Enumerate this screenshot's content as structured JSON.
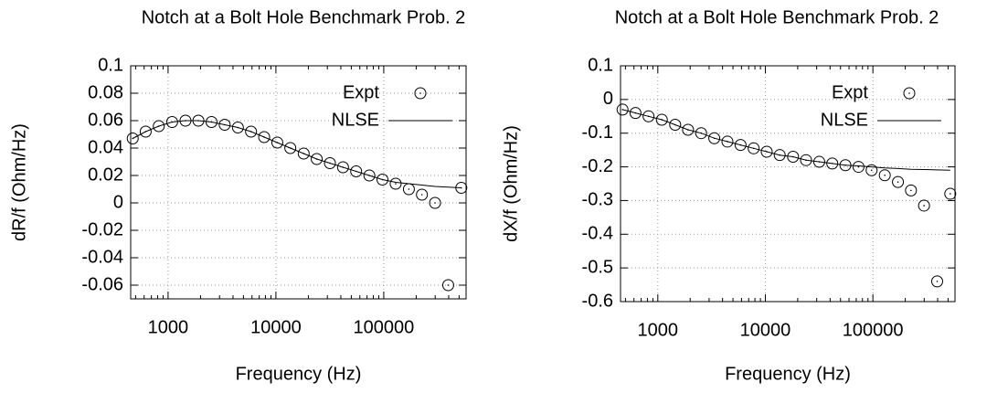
{
  "chart_data": [
    {
      "type": "line",
      "title": "Notch at a Bolt Hole Benchmark Prob. 2",
      "x_label": "Frequency (Hz)",
      "y_label": "dR/f (Ohm/Hz)",
      "xlog": true,
      "grid": true,
      "legend": "top-right",
      "xlim": [
        450,
        580000
      ],
      "xticks": [
        1000,
        10000,
        100000
      ],
      "ylim": [
        -0.07,
        0.1
      ],
      "yticks": [
        0.1,
        0.08,
        0.06,
        0.04,
        0.02,
        0,
        -0.02,
        -0.04,
        -0.06
      ],
      "x": [
        470,
        620,
        820,
        1090,
        1450,
        1910,
        2530,
        3350,
        4440,
        5880,
        7780,
        10300,
        13600,
        18100,
        23900,
        31700,
        41900,
        55500,
        73500,
        97300,
        129000,
        171000,
        226000,
        299000,
        396000,
        524000
      ],
      "series": [
        {
          "name": "Expt",
          "style": "points",
          "color": "#000000",
          "values": [
            0.047,
            0.052,
            0.056,
            0.059,
            0.06,
            0.06,
            0.059,
            0.057,
            0.055,
            0.052,
            0.048,
            0.044,
            0.04,
            0.036,
            0.032,
            0.029,
            0.026,
            0.023,
            0.02,
            0.017,
            0.014,
            0.01,
            0.006,
            0,
            -0.06,
            0.011
          ]
        },
        {
          "name": "NLSE",
          "style": "line",
          "color": "#000000",
          "values": [
            0.047,
            0.052,
            0.056,
            0.059,
            0.06,
            0.06,
            0.059,
            0.057,
            0.055,
            0.052,
            0.048,
            0.044,
            0.04,
            0.036,
            0.032,
            0.029,
            0.026,
            0.023,
            0.02,
            0.017,
            0.015,
            0.014,
            0.013,
            0.012,
            0.0115,
            0.011
          ]
        }
      ]
    },
    {
      "type": "line",
      "title": "Notch at a Bolt Hole Benchmark Prob. 2",
      "x_label": "Frequency (Hz)",
      "y_label": "dX/f (Ohm/Hz)",
      "xlog": true,
      "grid": true,
      "legend": "top-right",
      "xlim": [
        450,
        580000
      ],
      "xticks": [
        1000,
        10000,
        100000
      ],
      "ylim": [
        -0.6,
        0.1
      ],
      "yticks": [
        0.1,
        0,
        -0.1,
        -0.2,
        -0.3,
        -0.4,
        -0.5,
        -0.6
      ],
      "x": [
        470,
        620,
        820,
        1090,
        1450,
        1910,
        2530,
        3350,
        4440,
        5880,
        7780,
        10300,
        13600,
        18100,
        23900,
        31700,
        41900,
        55500,
        73500,
        97300,
        129000,
        171000,
        226000,
        299000,
        396000,
        524000
      ],
      "series": [
        {
          "name": "Expt",
          "style": "points",
          "color": "#000000",
          "values": [
            -0.03,
            -0.04,
            -0.05,
            -0.06,
            -0.075,
            -0.09,
            -0.1,
            -0.115,
            -0.125,
            -0.135,
            -0.145,
            -0.155,
            -0.165,
            -0.17,
            -0.18,
            -0.185,
            -0.19,
            -0.195,
            -0.2,
            -0.21,
            -0.225,
            -0.245,
            -0.27,
            -0.315,
            -0.54,
            -0.28
          ]
        },
        {
          "name": "NLSE",
          "style": "line",
          "color": "#000000",
          "values": [
            -0.03,
            -0.04,
            -0.05,
            -0.06,
            -0.075,
            -0.09,
            -0.1,
            -0.115,
            -0.125,
            -0.135,
            -0.145,
            -0.155,
            -0.165,
            -0.17,
            -0.18,
            -0.185,
            -0.19,
            -0.195,
            -0.197,
            -0.2,
            -0.203,
            -0.205,
            -0.207,
            -0.208,
            -0.209,
            -0.21
          ]
        }
      ]
    }
  ]
}
